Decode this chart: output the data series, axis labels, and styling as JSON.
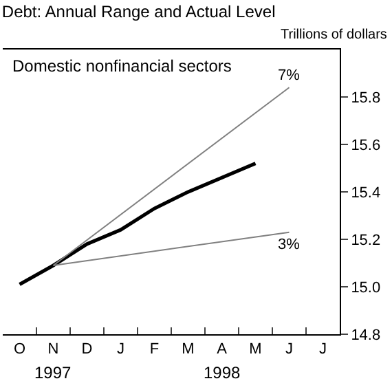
{
  "chart_data": {
    "type": "line",
    "title": "Debt: Annual Range and Actual Level",
    "ylabel": "Trillions of dollars",
    "categories": [
      "O",
      "N",
      "D",
      "J",
      "F",
      "M",
      "A",
      "M",
      "J",
      "J"
    ],
    "series": [
      {
        "color": "#000000",
        "values": [
          15.01,
          15.09,
          15.18,
          15.24,
          15.33,
          15.4,
          15.46,
          15.52,
          null,
          null
        ]
      },
      {
        "name": "7%",
        "color": "#808080",
        "values": [
          null,
          15.09,
          null,
          null,
          null,
          null,
          null,
          null,
          15.84,
          null
        ]
      },
      {
        "name": "3%",
        "color": "#808080",
        "values": [
          null,
          15.09,
          null,
          null,
          null,
          null,
          null,
          null,
          15.23,
          null
        ]
      }
    ],
    "ylim": [
      14.8,
      16.0
    ],
    "yticks": [
      14.8,
      {
        "value": 15.0,
        "label": "15.0"
      },
      15.2,
      15.4,
      15.6,
      15.8
    ],
    "annotations": [
      "Domestic nonfinancial sectors",
      "1997",
      "1998"
    ],
    "grid": false,
    "legend": false,
    "marker": "none",
    "line_style": "solid"
  }
}
